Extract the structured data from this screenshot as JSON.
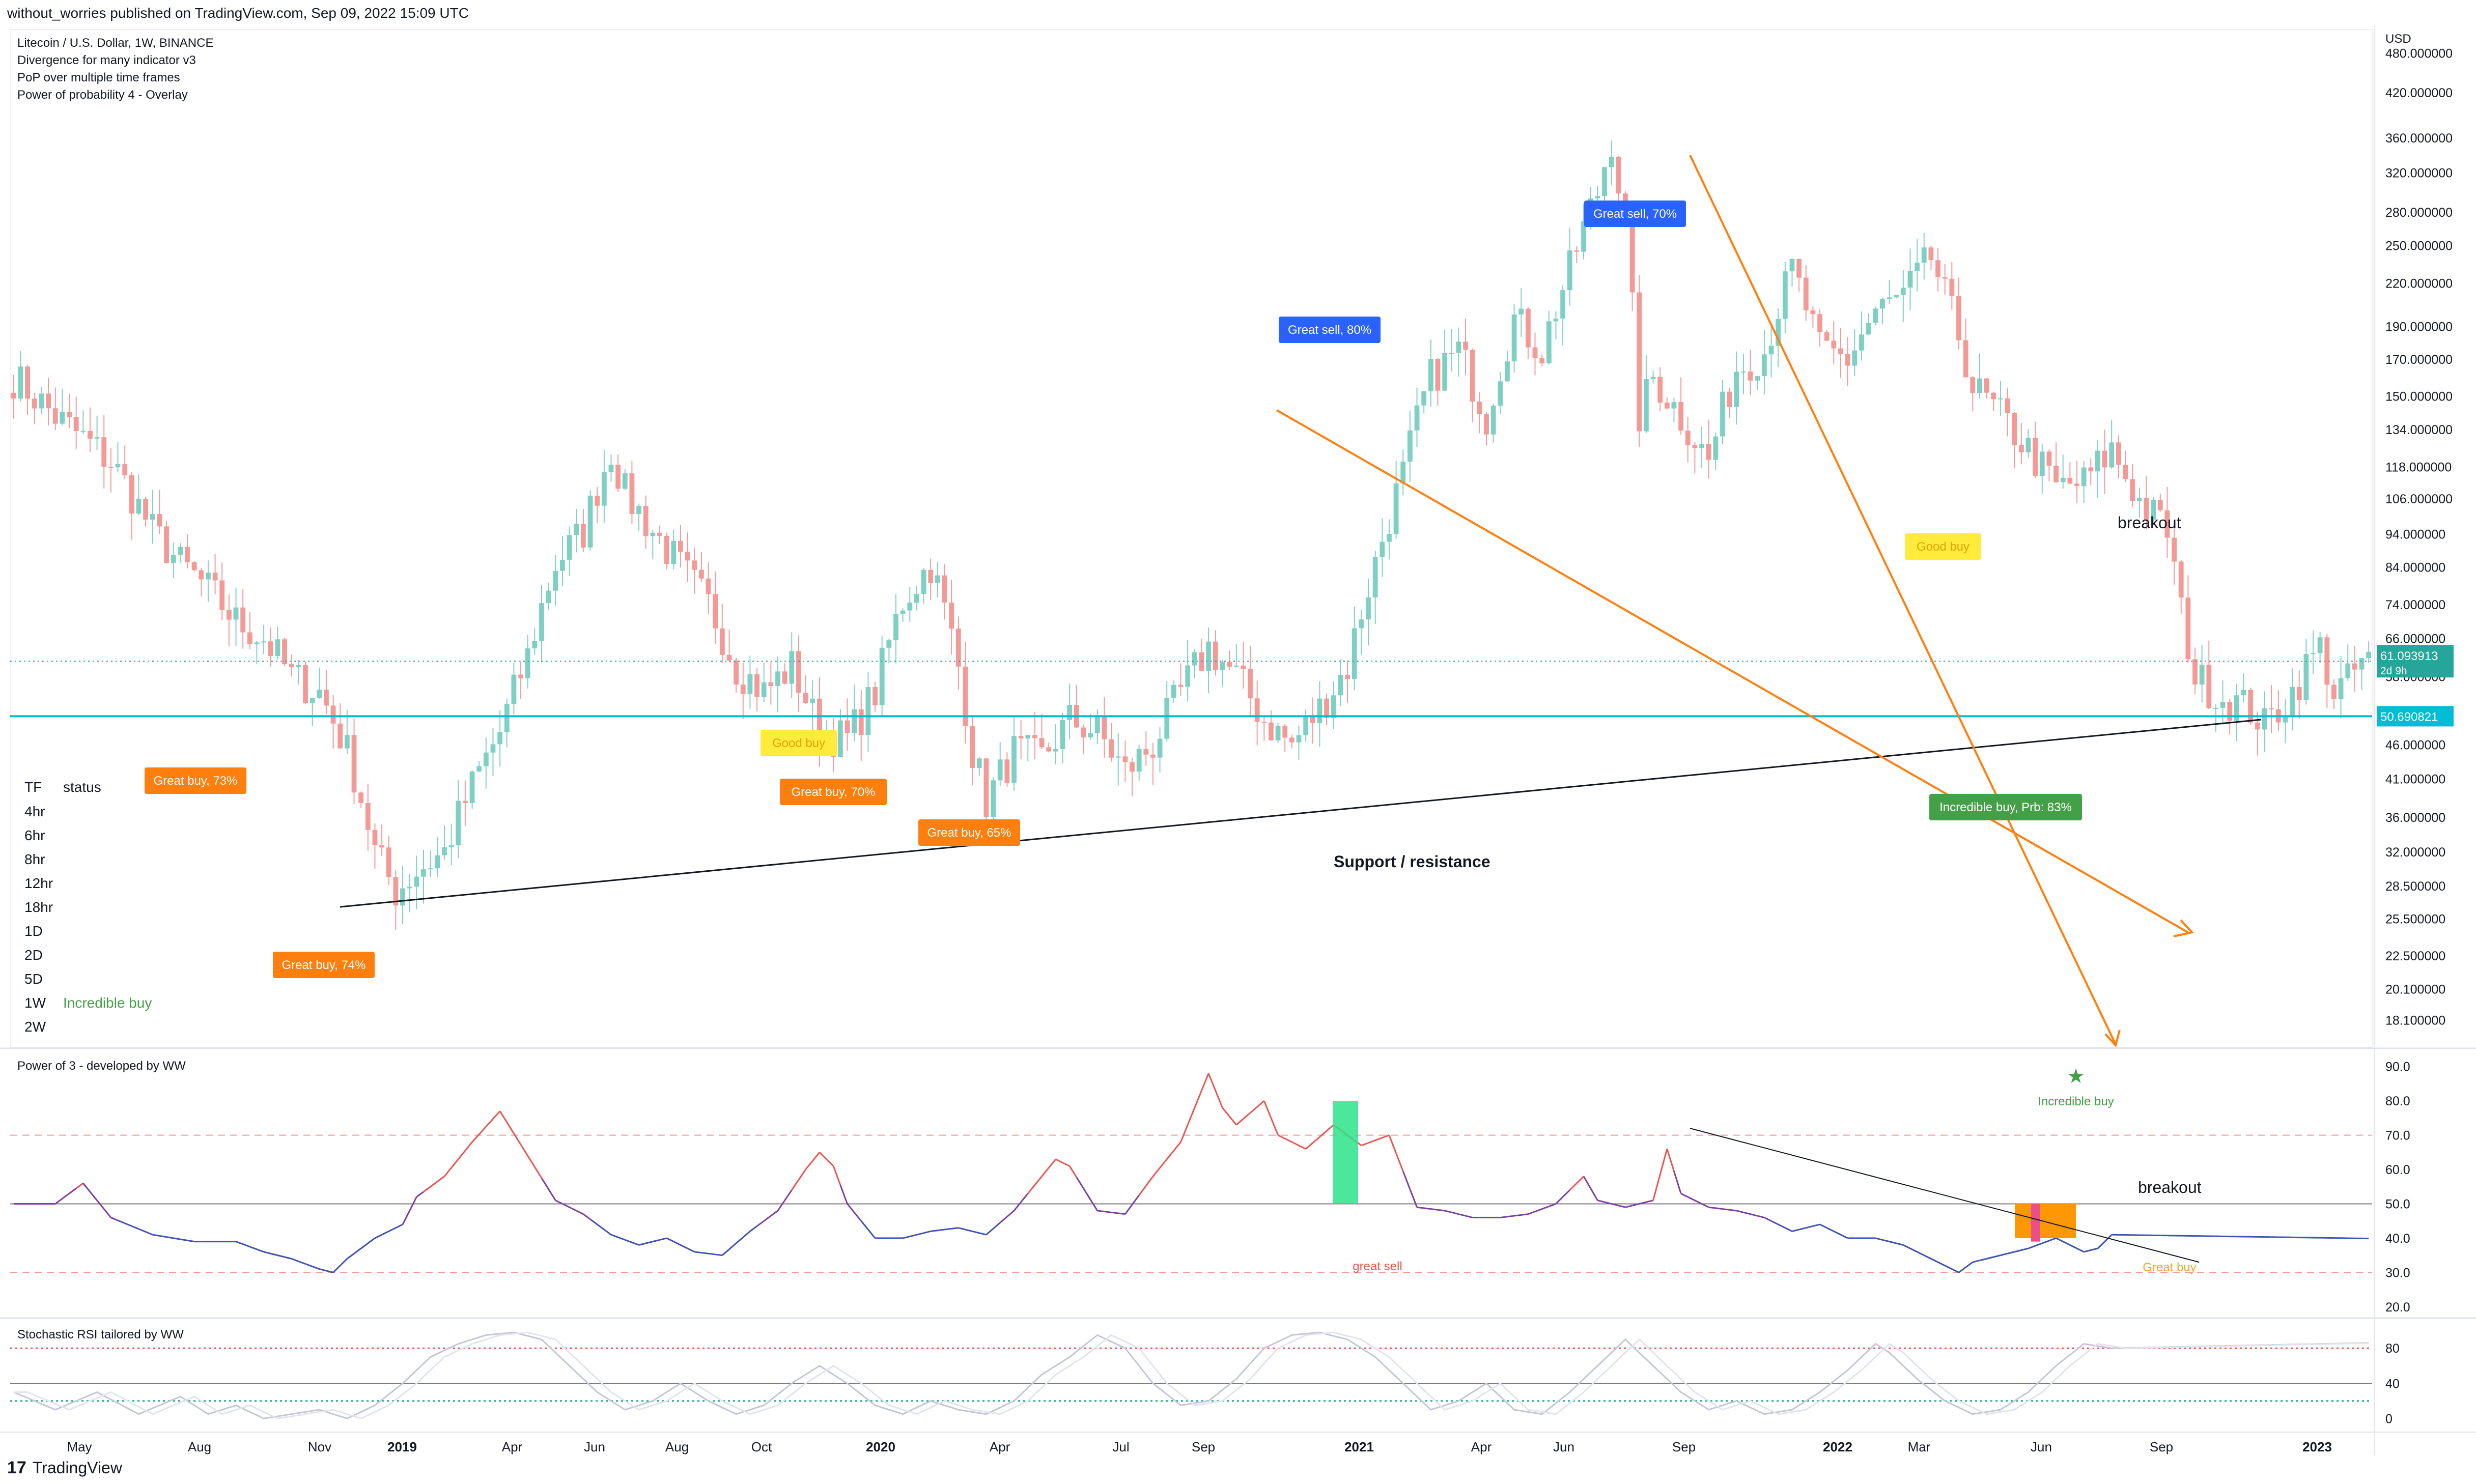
{
  "header": {
    "publisher": "without_worries published on TradingView.com, Sep 09, 2022 15:09 UTC",
    "lines": [
      "Litecoin / U.S. Dollar, 1W, BINANCE",
      "Divergence for many indicator v3",
      "PoP over multiple time frames",
      "Power of probability 4 - Overlay"
    ]
  },
  "footer": {
    "logo_text": "TradingView",
    "logo_glyph": "17"
  },
  "colors": {
    "up": "#26a69a",
    "down": "#ef5350",
    "up_soft": "#7fd0c4",
    "down_soft": "#f39a97",
    "orange": "#ff7f0e",
    "cyan": "#00bcd4",
    "blue": "#2962ff",
    "green": "#43a047",
    "yellow": "#ffeb3b",
    "purple": "#7b3fa0",
    "indigo": "#3f51b5"
  },
  "panes": {
    "price": {
      "currency": "USD",
      "ticks": [
        "480.000000",
        "420.000000",
        "360.000000",
        "320.000000",
        "280.000000",
        "250.000000",
        "220.000000",
        "190.000000",
        "170.000000",
        "150.000000",
        "134.000000",
        "118.000000",
        "106.000000",
        "94.000000",
        "84.000000",
        "74.000000",
        "66.000000",
        "58.000000",
        "46.000000",
        "41.000000",
        "36.000000",
        "32.000000",
        "28.500000",
        "25.500000",
        "22.500000",
        "20.100000",
        "18.100000"
      ],
      "last_price": "61.093913",
      "last_countdown": "2d 9h",
      "hline_value": "50.690821"
    },
    "power3": {
      "title": "Power of 3 - developed by WW",
      "ticks": [
        "90.0",
        "80.0",
        "70.0",
        "60.0",
        "50.0",
        "40.0",
        "30.0",
        "20.0"
      ]
    },
    "stoch": {
      "title": "Stochastic RSI tailored by WW",
      "ticks": [
        "80",
        "40",
        "0"
      ]
    }
  },
  "time_axis": [
    "May",
    "Aug",
    "Nov",
    "2019",
    "Apr",
    "Jun",
    "Aug",
    "Oct",
    "2020",
    "Apr",
    "Jul",
    "Sep",
    "2021",
    "Apr",
    "Jun",
    "Sep",
    "2022",
    "Mar",
    "Jun",
    "Sep",
    "2023"
  ],
  "tf_table": {
    "header": [
      "TF",
      "status"
    ],
    "rows": [
      {
        "tf": "4hr",
        "status": ""
      },
      {
        "tf": "6hr",
        "status": ""
      },
      {
        "tf": "8hr",
        "status": ""
      },
      {
        "tf": "12hr",
        "status": ""
      },
      {
        "tf": "18hr",
        "status": ""
      },
      {
        "tf": "1D",
        "status": ""
      },
      {
        "tf": "2D",
        "status": ""
      },
      {
        "tf": "5D",
        "status": ""
      },
      {
        "tf": "1W",
        "status": "Incredible buy"
      },
      {
        "tf": "2W",
        "status": ""
      }
    ]
  },
  "annotations": {
    "labels": [
      {
        "text": "Great buy,  73%",
        "kind": "orange"
      },
      {
        "text": "Great buy,  74%",
        "kind": "orange"
      },
      {
        "text": "Good buy",
        "kind": "yellow"
      },
      {
        "text": "Great buy,  70%",
        "kind": "orange"
      },
      {
        "text": "Great buy,  65%",
        "kind": "orange"
      },
      {
        "text": "Great sell, 80%",
        "kind": "blue"
      },
      {
        "text": "Great sell, 70%",
        "kind": "blue"
      },
      {
        "text": "Good buy",
        "kind": "yellow"
      },
      {
        "text": "Incredible buy, Prb: 83%",
        "kind": "green"
      }
    ],
    "texts": [
      "breakout",
      "Support / resistance",
      "breakout",
      "Incredible buy",
      "great sell",
      "Great buy"
    ],
    "star_glyph": "★"
  },
  "chart_data": [
    {
      "type": "candlestick",
      "title": "Litecoin / U.S. Dollar, 1W, BINANCE",
      "ylabel": "USD",
      "yscale": "log",
      "ylim": [
        16.5,
        520
      ],
      "xlim": [
        "2018-04-02",
        "2023-02-13"
      ],
      "anchor_closes": [
        [
          0,
          160
        ],
        [
          6,
          140
        ],
        [
          14,
          120
        ],
        [
          20,
          95
        ],
        [
          24,
          85
        ],
        [
          28,
          78
        ],
        [
          32,
          70
        ],
        [
          36,
          66
        ],
        [
          40,
          58
        ],
        [
          44,
          55
        ],
        [
          48,
          45
        ],
        [
          52,
          32
        ],
        [
          55,
          28
        ],
        [
          58,
          30
        ],
        [
          62,
          32
        ],
        [
          66,
          40
        ],
        [
          70,
          48
        ],
        [
          74,
          62
        ],
        [
          78,
          85
        ],
        [
          82,
          95
        ],
        [
          84,
          110
        ],
        [
          86,
          125
        ],
        [
          88,
          108
        ],
        [
          92,
          95
        ],
        [
          96,
          84
        ],
        [
          100,
          74
        ],
        [
          104,
          60
        ],
        [
          108,
          55
        ],
        [
          112,
          60
        ],
        [
          116,
          48
        ],
        [
          120,
          47
        ],
        [
          124,
          55
        ],
        [
          128,
          75
        ],
        [
          130,
          80
        ],
        [
          132,
          85
        ],
        [
          136,
          60
        ],
        [
          138,
          45
        ],
        [
          140,
          38
        ],
        [
          144,
          45
        ],
        [
          148,
          44
        ],
        [
          152,
          50
        ],
        [
          156,
          48
        ],
        [
          160,
          42
        ],
        [
          164,
          46
        ],
        [
          168,
          55
        ],
        [
          172,
          64
        ],
        [
          176,
          58
        ],
        [
          180,
          50
        ],
        [
          184,
          46
        ],
        [
          188,
          52
        ],
        [
          192,
          60
        ],
        [
          196,
          85
        ],
        [
          200,
          115
        ],
        [
          204,
          160
        ],
        [
          208,
          175
        ],
        [
          212,
          140
        ],
        [
          216,
          195
        ],
        [
          220,
          175
        ],
        [
          224,
          230
        ],
        [
          228,
          300
        ],
        [
          230,
          360
        ],
        [
          232,
          260
        ],
        [
          234,
          140
        ],
        [
          236,
          160
        ],
        [
          240,
          140
        ],
        [
          244,
          120
        ],
        [
          248,
          165
        ],
        [
          252,
          175
        ],
        [
          256,
          230
        ],
        [
          260,
          175
        ],
        [
          264,
          170
        ],
        [
          268,
          200
        ],
        [
          272,
          210
        ],
        [
          276,
          240
        ],
        [
          278,
          210
        ],
        [
          280,
          185
        ],
        [
          282,
          155
        ],
        [
          286,
          140
        ],
        [
          290,
          125
        ],
        [
          294,
          110
        ],
        [
          298,
          112
        ],
        [
          302,
          125
        ],
        [
          304,
          115
        ],
        [
          306,
          105
        ],
        [
          310,
          95
        ],
        [
          312,
          72
        ],
        [
          314,
          58
        ],
        [
          318,
          54
        ],
        [
          322,
          52
        ],
        [
          324,
          49
        ],
        [
          328,
          55
        ],
        [
          330,
          60
        ],
        [
          332,
          64
        ],
        [
          334,
          55
        ],
        [
          336,
          57
        ],
        [
          338,
          61
        ]
      ]
    },
    {
      "type": "line",
      "title": "Power of 3 - developed by WW",
      "ylim": [
        17,
        95
      ],
      "hlines": [
        70,
        50,
        30
      ],
      "anchor_values": [
        [
          0,
          50
        ],
        [
          6,
          50
        ],
        [
          10,
          56
        ],
        [
          14,
          46
        ],
        [
          20,
          41
        ],
        [
          26,
          39
        ],
        [
          32,
          39
        ],
        [
          36,
          36
        ],
        [
          40,
          34
        ],
        [
          44,
          31
        ],
        [
          46,
          30
        ],
        [
          48,
          34
        ],
        [
          52,
          40
        ],
        [
          56,
          44
        ],
        [
          58,
          52
        ],
        [
          62,
          58
        ],
        [
          66,
          68
        ],
        [
          70,
          77
        ],
        [
          74,
          64
        ],
        [
          78,
          51
        ],
        [
          82,
          47
        ],
        [
          86,
          41
        ],
        [
          90,
          38
        ],
        [
          94,
          40
        ],
        [
          98,
          36
        ],
        [
          102,
          35
        ],
        [
          106,
          42
        ],
        [
          110,
          48
        ],
        [
          114,
          60
        ],
        [
          116,
          65
        ],
        [
          118,
          61
        ],
        [
          120,
          50
        ],
        [
          124,
          40
        ],
        [
          128,
          40
        ],
        [
          132,
          42
        ],
        [
          136,
          43
        ],
        [
          140,
          41
        ],
        [
          144,
          48
        ],
        [
          148,
          58
        ],
        [
          150,
          63
        ],
        [
          152,
          61
        ],
        [
          156,
          48
        ],
        [
          160,
          47
        ],
        [
          164,
          58
        ],
        [
          168,
          68
        ],
        [
          172,
          88
        ],
        [
          174,
          78
        ],
        [
          176,
          73
        ],
        [
          180,
          80
        ],
        [
          182,
          70
        ],
        [
          186,
          66
        ],
        [
          190,
          73
        ],
        [
          194,
          67
        ],
        [
          198,
          70
        ],
        [
          202,
          49
        ],
        [
          206,
          48
        ],
        [
          210,
          46
        ],
        [
          214,
          46
        ],
        [
          218,
          47
        ],
        [
          222,
          50
        ],
        [
          226,
          58
        ],
        [
          228,
          51
        ],
        [
          232,
          49
        ],
        [
          236,
          51
        ],
        [
          238,
          66
        ],
        [
          240,
          53
        ],
        [
          244,
          49
        ],
        [
          248,
          48
        ],
        [
          252,
          46
        ],
        [
          256,
          42
        ],
        [
          260,
          44
        ],
        [
          264,
          40
        ],
        [
          268,
          40
        ],
        [
          272,
          38
        ],
        [
          276,
          34
        ],
        [
          280,
          30
        ],
        [
          282,
          33
        ],
        [
          286,
          35
        ],
        [
          290,
          37
        ],
        [
          294,
          40
        ],
        [
          298,
          36
        ],
        [
          300,
          37
        ],
        [
          302,
          41
        ]
      ]
    },
    {
      "type": "line",
      "title": "Stochastic RSI tailored by WW",
      "ylim": [
        -12,
        112
      ],
      "hlines": [
        80,
        40,
        20
      ],
      "anchor_values": [
        [
          0,
          30
        ],
        [
          6,
          10
        ],
        [
          12,
          30
        ],
        [
          18,
          5
        ],
        [
          24,
          25
        ],
        [
          28,
          5
        ],
        [
          32,
          15
        ],
        [
          36,
          0
        ],
        [
          40,
          5
        ],
        [
          44,
          10
        ],
        [
          48,
          0
        ],
        [
          52,
          15
        ],
        [
          56,
          40
        ],
        [
          60,
          70
        ],
        [
          64,
          85
        ],
        [
          68,
          95
        ],
        [
          72,
          98
        ],
        [
          76,
          90
        ],
        [
          80,
          60
        ],
        [
          84,
          30
        ],
        [
          88,
          10
        ],
        [
          92,
          20
        ],
        [
          96,
          40
        ],
        [
          100,
          20
        ],
        [
          104,
          5
        ],
        [
          108,
          15
        ],
        [
          112,
          40
        ],
        [
          116,
          60
        ],
        [
          120,
          40
        ],
        [
          124,
          15
        ],
        [
          128,
          5
        ],
        [
          132,
          20
        ],
        [
          136,
          10
        ],
        [
          140,
          5
        ],
        [
          144,
          20
        ],
        [
          148,
          50
        ],
        [
          152,
          70
        ],
        [
          156,
          95
        ],
        [
          160,
          80
        ],
        [
          164,
          40
        ],
        [
          168,
          15
        ],
        [
          172,
          20
        ],
        [
          176,
          45
        ],
        [
          180,
          80
        ],
        [
          184,
          95
        ],
        [
          188,
          98
        ],
        [
          192,
          90
        ],
        [
          196,
          70
        ],
        [
          200,
          40
        ],
        [
          204,
          10
        ],
        [
          208,
          20
        ],
        [
          212,
          40
        ],
        [
          216,
          10
        ],
        [
          220,
          5
        ],
        [
          224,
          30
        ],
        [
          228,
          60
        ],
        [
          232,
          90
        ],
        [
          236,
          60
        ],
        [
          240,
          30
        ],
        [
          244,
          10
        ],
        [
          248,
          20
        ],
        [
          252,
          5
        ],
        [
          256,
          10
        ],
        [
          260,
          30
        ],
        [
          264,
          55
        ],
        [
          268,
          85
        ],
        [
          270,
          75
        ],
        [
          274,
          45
        ],
        [
          278,
          20
        ],
        [
          282,
          5
        ],
        [
          286,
          10
        ],
        [
          290,
          30
        ],
        [
          294,
          60
        ],
        [
          298,
          85
        ],
        [
          302,
          80
        ]
      ]
    }
  ]
}
